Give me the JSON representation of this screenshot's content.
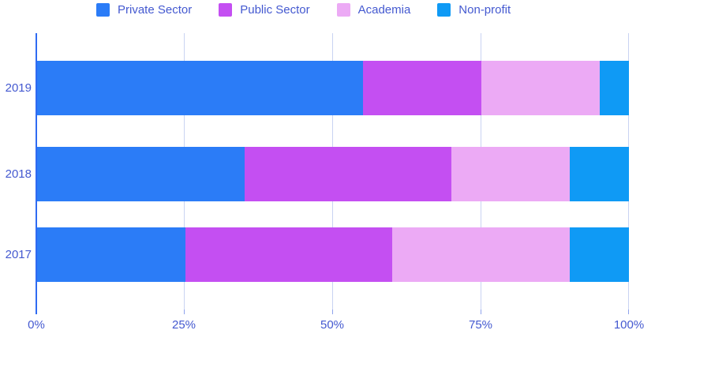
{
  "chart_data": {
    "type": "bar",
    "orientation": "horizontal",
    "stacked": true,
    "unit": "%",
    "categories": [
      "2019",
      "2018",
      "2017"
    ],
    "series": [
      {
        "name": "Private Sector",
        "color": "#2b7cf7",
        "values": [
          55,
          35,
          25
        ]
      },
      {
        "name": "Public Sector",
        "color": "#c44ff2",
        "values": [
          20,
          35,
          35
        ]
      },
      {
        "name": "Academia",
        "color": "#ecaaf5",
        "values": [
          20,
          20,
          30
        ]
      },
      {
        "name": "Non-profit",
        "color": "#0f9af5",
        "values": [
          5,
          10,
          10
        ]
      }
    ],
    "xlim": [
      0,
      100
    ],
    "x_tick_labels": [
      "0%",
      "25%",
      "50%",
      "75%",
      "100%"
    ],
    "legend_position": "top",
    "grid": true,
    "colors": {
      "axis_line": "#2f6bf2",
      "gridline": "#c9d3f2",
      "tick": "#8fa3ec",
      "label_text": "#4459d0",
      "background": "#ffffff"
    }
  }
}
